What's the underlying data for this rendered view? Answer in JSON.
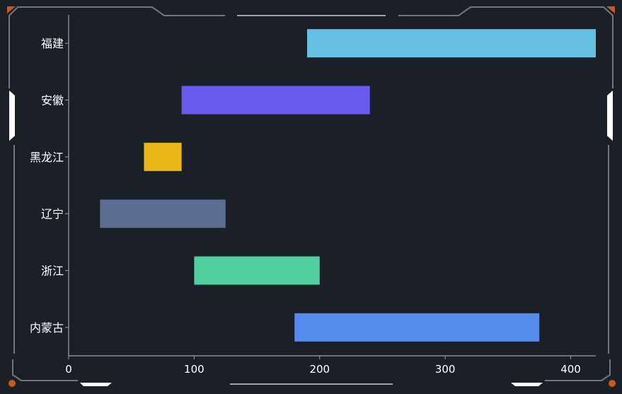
{
  "chart_data": {
    "type": "bar",
    "orientation": "horizontal",
    "subtype": "floating-range",
    "categories": [
      "福建",
      "安徽",
      "黑龙江",
      "辽宁",
      "浙江",
      "内蒙古"
    ],
    "series": [
      {
        "ranges": [
          [
            190,
            420
          ],
          [
            90,
            240
          ],
          [
            60,
            90
          ],
          [
            25,
            125
          ],
          [
            100,
            200
          ],
          [
            180,
            375
          ]
        ],
        "colors": [
          "#66c0e4",
          "#6a5cf0",
          "#e9b519",
          "#5b6e91",
          "#52cf9e",
          "#568bee"
        ]
      }
    ],
    "xlim": [
      0,
      420
    ],
    "xticks": [
      0,
      100,
      200,
      300,
      400
    ],
    "xtick_labels": [
      "0",
      "100",
      "200",
      "300",
      "400"
    ],
    "grid": false,
    "legend": "none"
  },
  "theme": {
    "background": "#1b2028",
    "text": "#ffffff",
    "axis": "#9aa3ad",
    "frame": "#6f7780",
    "accent": "#c85a1c"
  },
  "decorations": [
    "frame-border",
    "corner-accent-icon",
    "side-tab-icon"
  ]
}
